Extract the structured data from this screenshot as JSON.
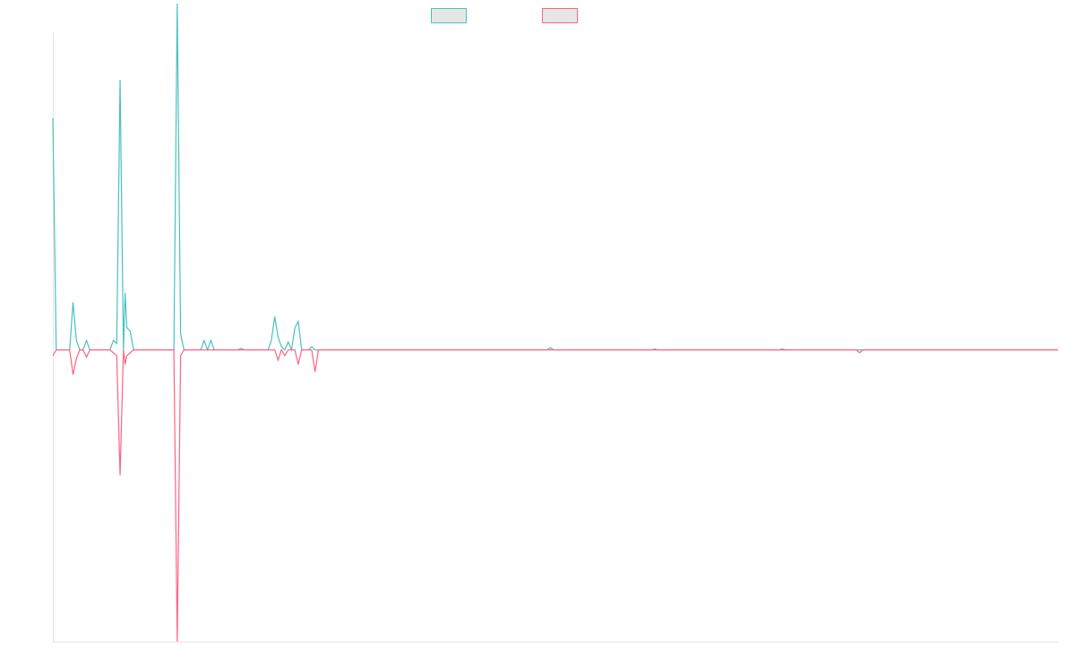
{
  "chart_data": {
    "type": "line",
    "title": "",
    "xlabel": "",
    "ylabel": "",
    "grid": false,
    "legend_position": "top-center",
    "x_count": 300,
    "ylim": [
      -100,
      100
    ],
    "series": [
      {
        "color": "#4bc0c0",
        "fill": "#e6e6e6",
        "points": [
          [
            0,
            73
          ],
          [
            1,
            0
          ],
          [
            5,
            0
          ],
          [
            6,
            15
          ],
          [
            7,
            3
          ],
          [
            8,
            0
          ],
          [
            9,
            0
          ],
          [
            10,
            3
          ],
          [
            11,
            0
          ],
          [
            17,
            0
          ],
          [
            18,
            3
          ],
          [
            19,
            2
          ],
          [
            20,
            85
          ],
          [
            21,
            0
          ],
          [
            21.5,
            18
          ],
          [
            22,
            7
          ],
          [
            23,
            6
          ],
          [
            24,
            0
          ],
          [
            36,
            0
          ],
          [
            37,
            109
          ],
          [
            38,
            5
          ],
          [
            39,
            0
          ],
          [
            44,
            0
          ],
          [
            45,
            3
          ],
          [
            46,
            0
          ],
          [
            47,
            3
          ],
          [
            48,
            0
          ],
          [
            55,
            0
          ],
          [
            56,
            0.5
          ],
          [
            57,
            0
          ],
          [
            64,
            0
          ],
          [
            65,
            3
          ],
          [
            66,
            10.5
          ],
          [
            67,
            4
          ],
          [
            68,
            1
          ],
          [
            69,
            0
          ],
          [
            70,
            2.5
          ],
          [
            71,
            0
          ],
          [
            72,
            7
          ],
          [
            73,
            9
          ],
          [
            74,
            0
          ],
          [
            75,
            0
          ],
          [
            76,
            0
          ],
          [
            77,
            1
          ],
          [
            78,
            0
          ],
          [
            147,
            0
          ],
          [
            148,
            0.7
          ],
          [
            149,
            0
          ],
          [
            178,
            0
          ],
          [
            179,
            0.3
          ],
          [
            180,
            0
          ],
          [
            216,
            0
          ],
          [
            217,
            0.3
          ],
          [
            218,
            0
          ],
          [
            299,
            0
          ]
        ]
      },
      {
        "color": "#ff6384",
        "fill": "#e6e6e6",
        "points": [
          [
            0,
            -2
          ],
          [
            1,
            0
          ],
          [
            5,
            0
          ],
          [
            6,
            -8.5
          ],
          [
            7,
            -3
          ],
          [
            8,
            0
          ],
          [
            9,
            0
          ],
          [
            10,
            -2.5
          ],
          [
            11,
            0
          ],
          [
            17,
            0
          ],
          [
            18,
            -1
          ],
          [
            19,
            -2
          ],
          [
            20,
            -43
          ],
          [
            21,
            0
          ],
          [
            21.5,
            -5
          ],
          [
            22,
            -2
          ],
          [
            23,
            -1
          ],
          [
            24,
            0
          ],
          [
            36,
            0
          ],
          [
            37,
            -100
          ],
          [
            38,
            -2
          ],
          [
            39,
            0
          ],
          [
            66,
            0
          ],
          [
            67,
            -3.5
          ],
          [
            68,
            0
          ],
          [
            69,
            -2
          ],
          [
            70,
            0
          ],
          [
            72,
            0
          ],
          [
            73,
            -5
          ],
          [
            74,
            0
          ],
          [
            77,
            0
          ],
          [
            78,
            -7.5
          ],
          [
            79,
            0
          ],
          [
            239,
            0
          ],
          [
            240,
            -1
          ],
          [
            241,
            0
          ],
          [
            299,
            0
          ]
        ]
      }
    ]
  }
}
